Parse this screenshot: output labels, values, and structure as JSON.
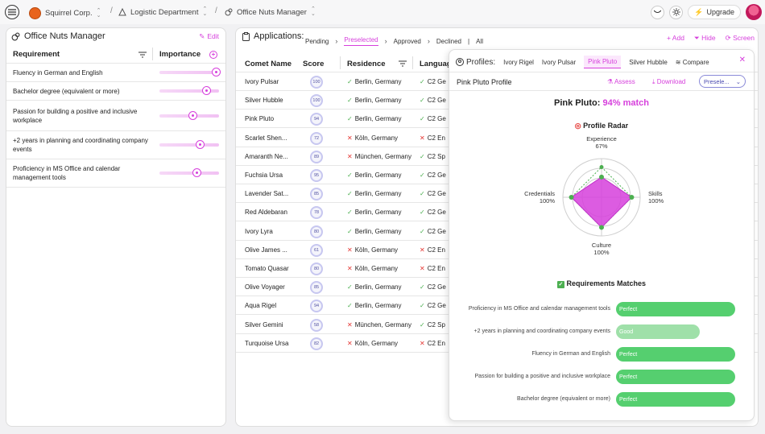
{
  "topbar": {
    "company": "Squirrel Corp.",
    "department": "Logistic Department",
    "app": "Office Nuts Manager",
    "upgrade_label": "Upgrade"
  },
  "left_panel": {
    "title": "Office Nuts Manager",
    "edit_label": "Edit",
    "col_requirement": "Requirement",
    "col_importance": "Importance",
    "requirements": [
      {
        "label": "Fluency in German and English",
        "importance": 0.95
      },
      {
        "label": "Bachelor degree (equivalent or more)",
        "importance": 0.78
      },
      {
        "label": "Passion for building a positive and inclusive workplace",
        "importance": 0.55
      },
      {
        "label": "+2 years in planning and coordinating company events",
        "importance": 0.67
      },
      {
        "label": "Proficiency in MS Office and calendar management tools",
        "importance": 0.62
      }
    ]
  },
  "applications": {
    "title": "Applications:",
    "tabs": [
      "Pending",
      "Preselected",
      "Approved",
      "Declined",
      "All"
    ],
    "active_tab": "Preselected",
    "add_label": "Add",
    "hide_label": "Hide",
    "screen_label": "Screen",
    "col_name": "Comet Name",
    "col_score": "Score",
    "col_residence": "Residence",
    "col_language": "Languag",
    "rows": [
      {
        "name": "Ivory Pulsar",
        "score": "100",
        "res_ok": true,
        "residence": "Berlin, Germany",
        "lang_ok": true,
        "language": "C2 Ge"
      },
      {
        "name": "Silver Hubble",
        "score": "100",
        "res_ok": true,
        "residence": "Berlin, Germany",
        "lang_ok": true,
        "language": "C2 Ge"
      },
      {
        "name": "Pink Pluto",
        "score": "94",
        "res_ok": true,
        "residence": "Berlin, Germany",
        "lang_ok": true,
        "language": "C2 Ge"
      },
      {
        "name": "Scarlet Shen...",
        "score": "72",
        "res_ok": false,
        "residence": "Köln, Germany",
        "lang_ok": false,
        "language": "C2 En"
      },
      {
        "name": "Amaranth Ne...",
        "score": "89",
        "res_ok": false,
        "residence": "München, Germany",
        "lang_ok": true,
        "language": "C2 Sp"
      },
      {
        "name": "Fuchsia Ursa",
        "score": "95",
        "res_ok": true,
        "residence": "Berlin, Germany",
        "lang_ok": true,
        "language": "C2 Ge"
      },
      {
        "name": "Lavender Sat...",
        "score": "85",
        "res_ok": true,
        "residence": "Berlin, Germany",
        "lang_ok": true,
        "language": "C2 Ge"
      },
      {
        "name": "Red Aldebaran",
        "score": "78",
        "res_ok": true,
        "residence": "Berlin, Germany",
        "lang_ok": true,
        "language": "C2 Ge"
      },
      {
        "name": "Ivory Lyra",
        "score": "80",
        "res_ok": true,
        "residence": "Berlin, Germany",
        "lang_ok": true,
        "language": "C2 Ge"
      },
      {
        "name": "Olive James ...",
        "score": "61",
        "res_ok": false,
        "residence": "Köln, Germany",
        "lang_ok": false,
        "language": "C2 En"
      },
      {
        "name": "Tomato Quasar",
        "score": "80",
        "res_ok": false,
        "residence": "Köln, Germany",
        "lang_ok": false,
        "language": "C2 En"
      },
      {
        "name": "Olive Voyager",
        "score": "85",
        "res_ok": true,
        "residence": "Berlin, Germany",
        "lang_ok": true,
        "language": "C2 Ge"
      },
      {
        "name": "Aqua Rigel",
        "score": "94",
        "res_ok": true,
        "residence": "Berlin, Germany",
        "lang_ok": true,
        "language": "C2 Ge"
      },
      {
        "name": "Silver Gemini",
        "score": "58",
        "res_ok": false,
        "residence": "München, Germany",
        "lang_ok": true,
        "language": "C2 Sp"
      },
      {
        "name": "Turquoise Ursa",
        "score": "82",
        "res_ok": false,
        "residence": "Köln, Germany",
        "lang_ok": false,
        "language": "C2 En"
      }
    ]
  },
  "profiles": {
    "title": "Profiles:",
    "tabs": [
      "Ivory Rigel",
      "Ivory Pulsar",
      "Pink Pluto",
      "Silver Hubble"
    ],
    "active_tab": "Pink Pluto",
    "compare_label": "Compare",
    "profile_title": "Pink Pluto Profile",
    "assess_label": "Assess",
    "download_label": "Download",
    "status_value": "Presele...",
    "match_name": "Pink Pluto:",
    "match_value": "94% match",
    "radar_title": "Profile Radar",
    "radar_axes": [
      {
        "label": "Experience",
        "value_label": "67%",
        "value": 0.67
      },
      {
        "label": "Skills",
        "value_label": "100%",
        "value": 1.0
      },
      {
        "label": "Culture",
        "value_label": "100%",
        "value": 1.0
      },
      {
        "label": "Credentials",
        "value_label": "100%",
        "value": 1.0
      }
    ],
    "matches_title": "Requirements Matches",
    "matches": [
      {
        "label": "Proficiency in MS Office and calendar management tools",
        "level": "Perfect",
        "fraction": 1.0
      },
      {
        "label": "+2 years in planning and coordinating company events",
        "level": "Good",
        "fraction": 0.7
      },
      {
        "label": "Fluency in German and English",
        "level": "Perfect",
        "fraction": 1.0
      },
      {
        "label": "Passion for building a positive and inclusive workplace",
        "level": "Perfect",
        "fraction": 1.0
      },
      {
        "label": "Bachelor degree (equivalent or more)",
        "level": "Perfect",
        "fraction": 1.0
      }
    ]
  },
  "colors": {
    "accent": "#d63fdc",
    "perfect": "#55cf6f",
    "good": "#9fe0a9",
    "ok": "#4caf50",
    "bad": "#e53935"
  }
}
